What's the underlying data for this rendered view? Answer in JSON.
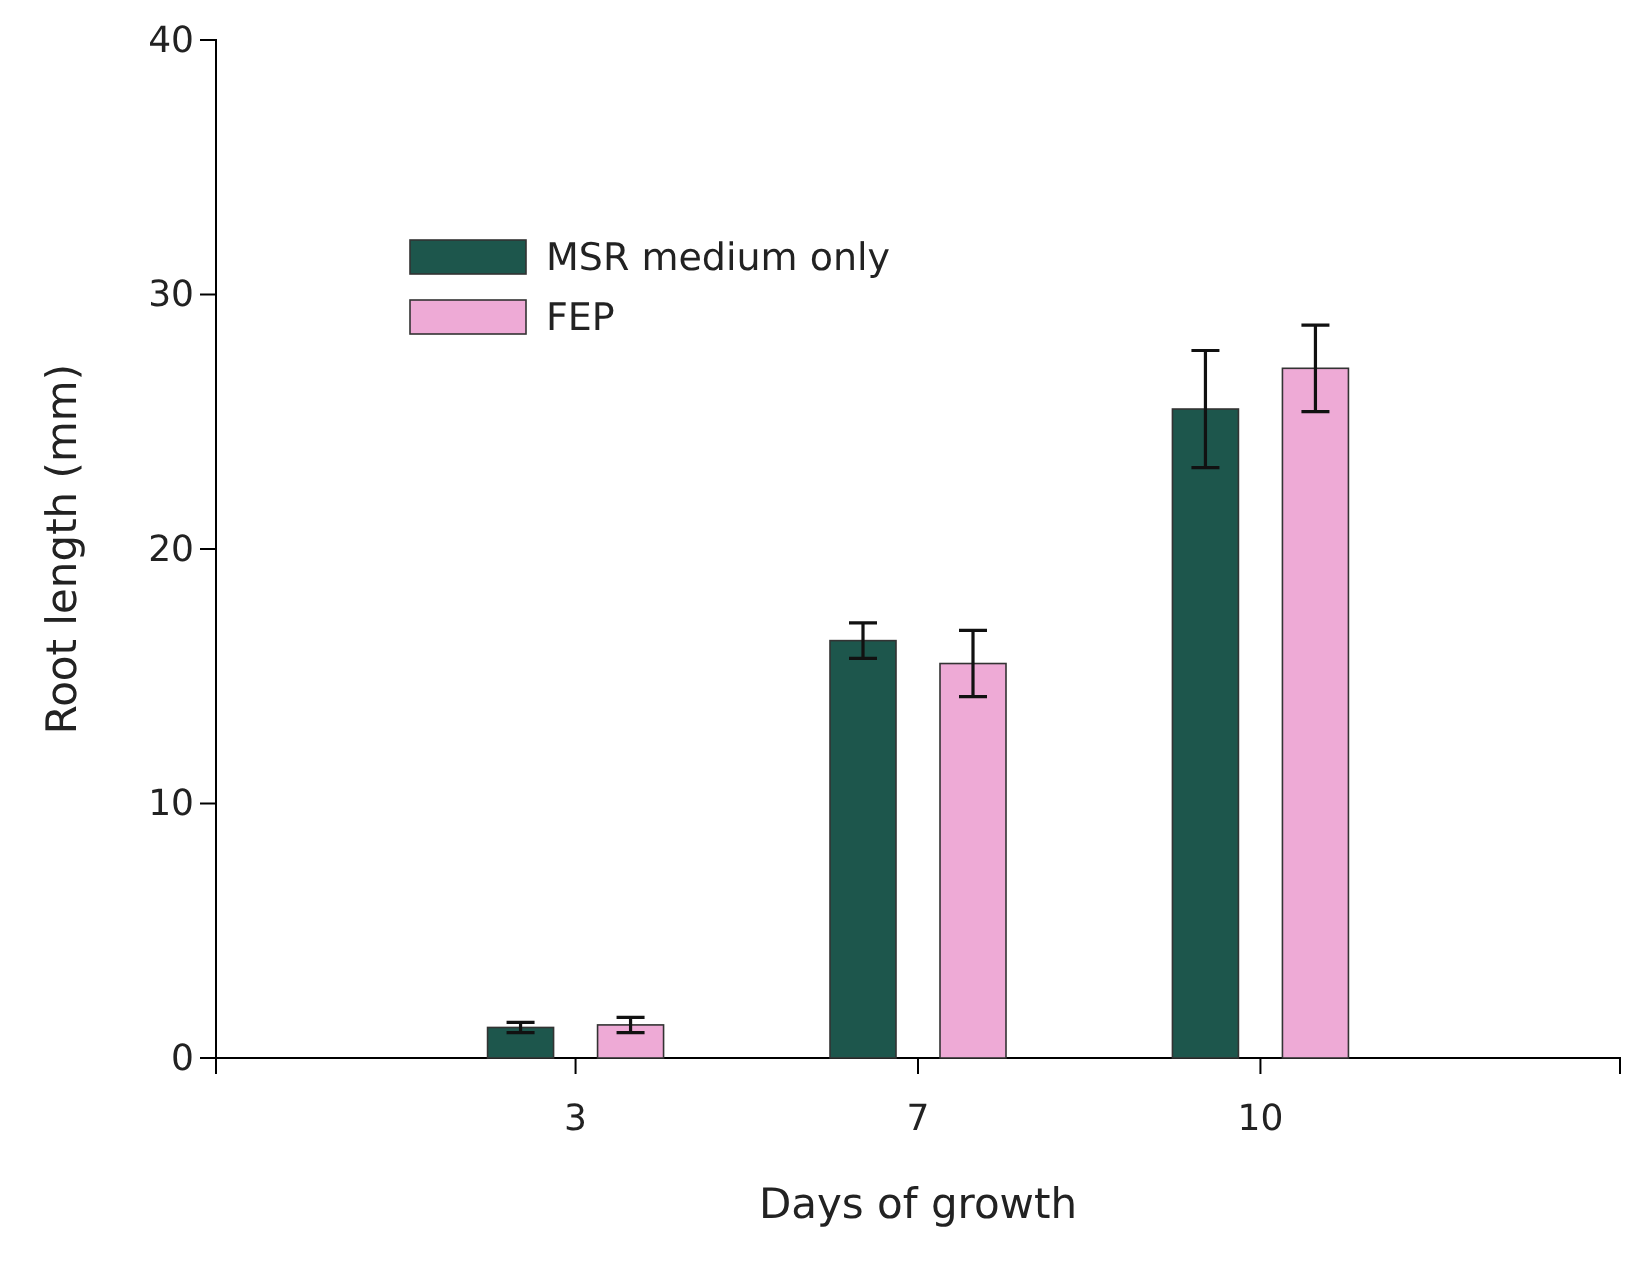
{
  "chart_data": {
    "type": "bar",
    "xlabel": "Days of growth",
    "ylabel": "Root length (mm)",
    "categories": [
      "3",
      "7",
      "10"
    ],
    "series": [
      {
        "name": "MSR medium only",
        "color": "#1d564c",
        "values": [
          1.2,
          16.4,
          25.5
        ],
        "errors": [
          0.2,
          0.7,
          2.3
        ]
      },
      {
        "name": "FEP",
        "color": "#eeaad6",
        "values": [
          1.3,
          15.5,
          27.1
        ],
        "errors": [
          0.3,
          1.3,
          1.7
        ]
      }
    ],
    "ylim": [
      0,
      40
    ],
    "yticks": [
      0,
      10,
      20,
      30,
      40
    ],
    "grid": false,
    "legend": "top left"
  }
}
